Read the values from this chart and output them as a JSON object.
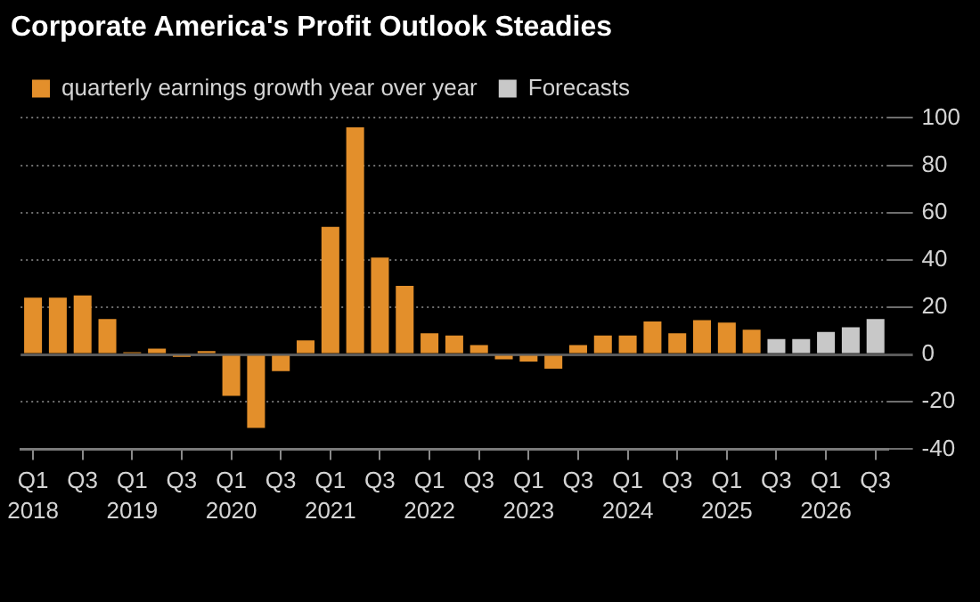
{
  "chart_data": {
    "type": "bar",
    "title": "Corporate America's Profit Outlook Steadies",
    "categories": [
      "Q1\n2018",
      null,
      "Q3",
      null,
      "Q1\n2019",
      null,
      "Q3",
      null,
      "Q1\n2020",
      null,
      "Q3",
      null,
      "Q1\n2021",
      null,
      "Q3",
      null,
      "Q1\n2022",
      null,
      "Q3",
      null,
      "Q1\n2023",
      null,
      "Q3",
      null,
      "Q1\n2024",
      null,
      "Q3",
      null,
      "Q1\n2025",
      null,
      "Q3",
      null,
      "Q1\n2026",
      null,
      "Q3"
    ],
    "series": [
      {
        "name": "quarterly earnings growth year over year",
        "color": "#e38f2b",
        "values": [
          24,
          24,
          25,
          15,
          1,
          2.5,
          -1,
          1.5,
          -17.5,
          -31,
          -7,
          6,
          54,
          96,
          41,
          29,
          9,
          8,
          4,
          -2,
          -3,
          -6,
          4,
          8,
          8,
          14,
          9,
          14.5,
          13.5,
          10.5,
          null,
          null,
          null,
          null,
          null
        ]
      },
      {
        "name": "Forecasts",
        "color": "#c8c8c8",
        "values": [
          null,
          null,
          null,
          null,
          null,
          null,
          null,
          null,
          null,
          null,
          null,
          null,
          null,
          null,
          null,
          null,
          null,
          null,
          null,
          null,
          null,
          null,
          null,
          null,
          null,
          null,
          null,
          null,
          null,
          null,
          6.5,
          6.5,
          9.5,
          11.5,
          15
        ]
      }
    ],
    "ylim": [
      -40,
      100
    ],
    "yticks": [
      -40,
      -20,
      0,
      20,
      40,
      60,
      80,
      100
    ],
    "grid": "y",
    "legend": "top left"
  }
}
